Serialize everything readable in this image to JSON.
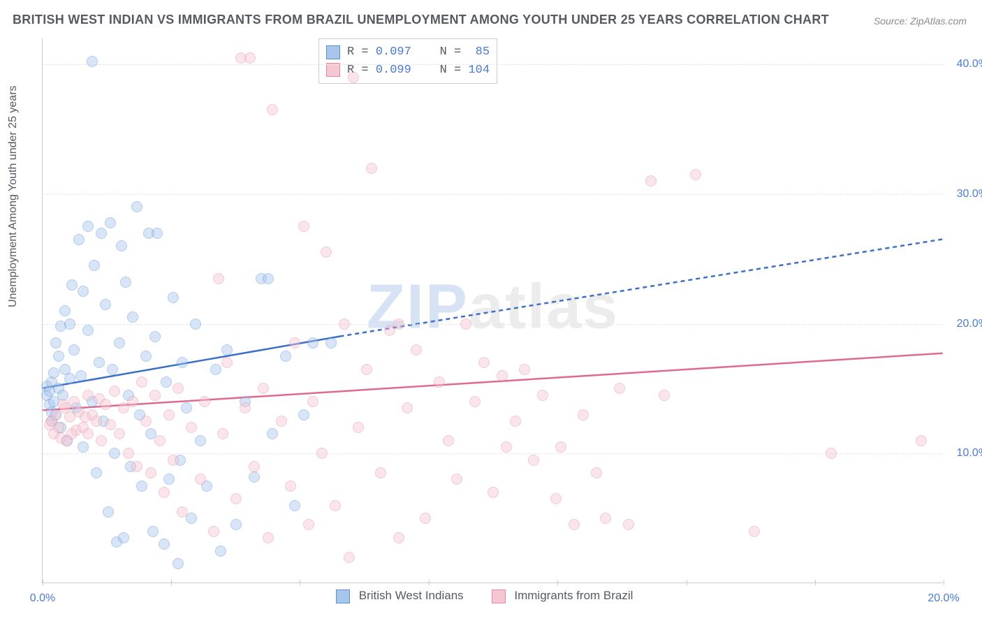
{
  "title": "BRITISH WEST INDIAN VS IMMIGRANTS FROM BRAZIL UNEMPLOYMENT AMONG YOUTH UNDER 25 YEARS CORRELATION CHART",
  "source_label": "Source: ZipAtlas.com",
  "y_axis_label": "Unemployment Among Youth under 25 years",
  "watermark": {
    "part1": "ZIP",
    "part2": "atlas"
  },
  "chart": {
    "type": "scatter",
    "xlim": [
      0,
      20
    ],
    "ylim": [
      0,
      42
    ],
    "y_ticks": [
      10,
      20,
      30,
      40
    ],
    "y_tick_labels": [
      "10.0%",
      "20.0%",
      "30.0%",
      "40.0%"
    ],
    "x_ticks": [
      0,
      2.86,
      5.71,
      8.57,
      11.43,
      14.29,
      17.14,
      20
    ],
    "x_tick_labels_shown": {
      "0": "0.0%",
      "20": "20.0%"
    },
    "background_color": "#ffffff",
    "grid_color": "#e3e5ea",
    "axis_color": "#c9ccd2",
    "tick_label_color": "#4a7bd4",
    "marker_radius": 8,
    "marker_opacity": 0.45,
    "series": [
      {
        "id": "bwi",
        "label": "British West Indians",
        "color_fill": "#a8c6ec",
        "color_stroke": "#5a8fd6",
        "stats": {
          "R": "0.097",
          "N": "85"
        },
        "trend": {
          "solid": {
            "x1": 0,
            "y1": 15.0,
            "x2": 6.6,
            "y2": 19.0
          },
          "dashed": {
            "x1": 6.6,
            "y1": 19.0,
            "x2": 20.0,
            "y2": 26.5
          },
          "color": "#3b6fc9",
          "width": 2.5
        },
        "points": [
          [
            0.1,
            14.5
          ],
          [
            0.1,
            15.2
          ],
          [
            0.15,
            13.8
          ],
          [
            0.15,
            14.8
          ],
          [
            0.2,
            13.2
          ],
          [
            0.2,
            15.5
          ],
          [
            0.2,
            12.5
          ],
          [
            0.25,
            14.0
          ],
          [
            0.25,
            16.2
          ],
          [
            0.3,
            18.5
          ],
          [
            0.3,
            13.0
          ],
          [
            0.35,
            15.0
          ],
          [
            0.35,
            17.5
          ],
          [
            0.4,
            12.0
          ],
          [
            0.4,
            19.8
          ],
          [
            0.45,
            14.5
          ],
          [
            0.5,
            21.0
          ],
          [
            0.5,
            16.5
          ],
          [
            0.55,
            11.0
          ],
          [
            0.6,
            20.0
          ],
          [
            0.6,
            15.8
          ],
          [
            0.65,
            23.0
          ],
          [
            0.7,
            18.0
          ],
          [
            0.75,
            13.5
          ],
          [
            0.8,
            26.5
          ],
          [
            0.85,
            16.0
          ],
          [
            0.9,
            22.5
          ],
          [
            0.9,
            10.5
          ],
          [
            1.0,
            27.5
          ],
          [
            1.0,
            19.5
          ],
          [
            1.1,
            14.0
          ],
          [
            1.1,
            40.2
          ],
          [
            1.15,
            24.5
          ],
          [
            1.2,
            8.5
          ],
          [
            1.25,
            17.0
          ],
          [
            1.3,
            27.0
          ],
          [
            1.35,
            12.5
          ],
          [
            1.4,
            21.5
          ],
          [
            1.45,
            5.5
          ],
          [
            1.5,
            27.8
          ],
          [
            1.55,
            16.5
          ],
          [
            1.6,
            10.0
          ],
          [
            1.65,
            3.2
          ],
          [
            1.7,
            18.5
          ],
          [
            1.75,
            26.0
          ],
          [
            1.8,
            3.5
          ],
          [
            1.85,
            23.2
          ],
          [
            1.9,
            14.5
          ],
          [
            1.95,
            9.0
          ],
          [
            2.0,
            20.5
          ],
          [
            2.1,
            29.0
          ],
          [
            2.15,
            13.0
          ],
          [
            2.2,
            7.5
          ],
          [
            2.3,
            17.5
          ],
          [
            2.35,
            27.0
          ],
          [
            2.4,
            11.5
          ],
          [
            2.45,
            4.0
          ],
          [
            2.5,
            19.0
          ],
          [
            2.55,
            27.0
          ],
          [
            2.7,
            3.0
          ],
          [
            2.75,
            15.5
          ],
          [
            2.8,
            8.0
          ],
          [
            2.9,
            22.0
          ],
          [
            3.0,
            1.5
          ],
          [
            3.05,
            9.5
          ],
          [
            3.1,
            17.0
          ],
          [
            3.2,
            13.5
          ],
          [
            3.3,
            5.0
          ],
          [
            3.4,
            20.0
          ],
          [
            3.5,
            11.0
          ],
          [
            3.65,
            7.5
          ],
          [
            3.85,
            16.5
          ],
          [
            3.95,
            2.5
          ],
          [
            4.1,
            18.0
          ],
          [
            4.3,
            4.5
          ],
          [
            4.5,
            14.0
          ],
          [
            4.7,
            8.2
          ],
          [
            4.85,
            23.5
          ],
          [
            5.0,
            23.5
          ],
          [
            5.1,
            11.5
          ],
          [
            5.4,
            17.5
          ],
          [
            5.6,
            6.0
          ],
          [
            5.8,
            13.0
          ],
          [
            6.0,
            18.5
          ],
          [
            6.4,
            18.5
          ]
        ]
      },
      {
        "id": "brazil",
        "label": "Immigrants from Brazil",
        "color_fill": "#f4c7d3",
        "color_stroke": "#e48aa6",
        "stats": {
          "R": "0.099",
          "N": "104"
        },
        "trend": {
          "solid": {
            "x1": 0,
            "y1": 13.3,
            "x2": 20.0,
            "y2": 17.7
          },
          "dashed": null,
          "color": "#e06a8f",
          "width": 2.5
        },
        "points": [
          [
            0.2,
            12.5
          ],
          [
            0.25,
            11.5
          ],
          [
            0.3,
            13.0
          ],
          [
            0.35,
            12.0
          ],
          [
            0.4,
            11.2
          ],
          [
            0.5,
            13.5
          ],
          [
            0.55,
            11.0
          ],
          [
            0.6,
            12.8
          ],
          [
            0.7,
            14.0
          ],
          [
            0.75,
            11.8
          ],
          [
            0.8,
            13.2
          ],
          [
            0.9,
            12.0
          ],
          [
            1.0,
            14.5
          ],
          [
            1.0,
            11.5
          ],
          [
            1.1,
            13.0
          ],
          [
            1.2,
            12.5
          ],
          [
            1.25,
            14.2
          ],
          [
            1.3,
            11.0
          ],
          [
            1.4,
            13.8
          ],
          [
            1.5,
            12.2
          ],
          [
            1.6,
            14.8
          ],
          [
            1.7,
            11.5
          ],
          [
            1.8,
            13.5
          ],
          [
            1.9,
            10.0
          ],
          [
            2.0,
            14.0
          ],
          [
            2.1,
            9.0
          ],
          [
            2.2,
            15.5
          ],
          [
            2.3,
            12.5
          ],
          [
            2.4,
            8.5
          ],
          [
            2.5,
            14.5
          ],
          [
            2.6,
            11.0
          ],
          [
            2.7,
            7.0
          ],
          [
            2.8,
            13.0
          ],
          [
            2.9,
            9.5
          ],
          [
            3.0,
            15.0
          ],
          [
            3.1,
            5.5
          ],
          [
            3.3,
            12.0
          ],
          [
            3.5,
            8.0
          ],
          [
            3.6,
            14.0
          ],
          [
            3.8,
            4.0
          ],
          [
            3.9,
            23.5
          ],
          [
            4.0,
            11.5
          ],
          [
            4.1,
            17.0
          ],
          [
            4.3,
            6.5
          ],
          [
            4.4,
            40.5
          ],
          [
            4.5,
            13.5
          ],
          [
            4.6,
            40.5
          ],
          [
            4.7,
            9.0
          ],
          [
            4.9,
            15.0
          ],
          [
            5.0,
            3.5
          ],
          [
            5.1,
            36.5
          ],
          [
            5.3,
            12.5
          ],
          [
            5.5,
            7.5
          ],
          [
            5.6,
            18.5
          ],
          [
            5.8,
            27.5
          ],
          [
            5.9,
            4.5
          ],
          [
            6.0,
            14.0
          ],
          [
            6.2,
            10.0
          ],
          [
            6.3,
            25.5
          ],
          [
            6.5,
            6.0
          ],
          [
            6.7,
            20.0
          ],
          [
            6.8,
            2.0
          ],
          [
            6.9,
            39.0
          ],
          [
            7.0,
            12.0
          ],
          [
            7.2,
            16.5
          ],
          [
            7.3,
            32.0
          ],
          [
            7.5,
            8.5
          ],
          [
            7.7,
            19.5
          ],
          [
            7.9,
            3.5
          ],
          [
            7.9,
            20.0
          ],
          [
            8.1,
            13.5
          ],
          [
            8.3,
            18.0
          ],
          [
            8.5,
            5.0
          ],
          [
            8.8,
            15.5
          ],
          [
            9.0,
            11.0
          ],
          [
            9.2,
            8.0
          ],
          [
            9.4,
            20.0
          ],
          [
            9.6,
            14.0
          ],
          [
            9.8,
            17.0
          ],
          [
            10.0,
            7.0
          ],
          [
            10.2,
            16.0
          ],
          [
            10.3,
            10.5
          ],
          [
            10.5,
            12.5
          ],
          [
            10.7,
            16.5
          ],
          [
            10.9,
            9.5
          ],
          [
            11.1,
            14.5
          ],
          [
            11.4,
            6.5
          ],
          [
            11.5,
            10.5
          ],
          [
            11.8,
            4.5
          ],
          [
            12.0,
            13.0
          ],
          [
            12.3,
            8.5
          ],
          [
            12.5,
            5.0
          ],
          [
            12.8,
            15.0
          ],
          [
            13.0,
            4.5
          ],
          [
            13.5,
            31.0
          ],
          [
            13.8,
            14.5
          ],
          [
            14.5,
            31.5
          ],
          [
            15.8,
            4.0
          ],
          [
            17.5,
            10.0
          ],
          [
            19.5,
            11.0
          ],
          [
            0.15,
            12.2
          ],
          [
            0.45,
            13.8
          ],
          [
            0.65,
            11.5
          ],
          [
            0.95,
            12.8
          ]
        ]
      }
    ]
  },
  "stats_legend_format": {
    "R_label": "R =",
    "N_label": "N ="
  }
}
